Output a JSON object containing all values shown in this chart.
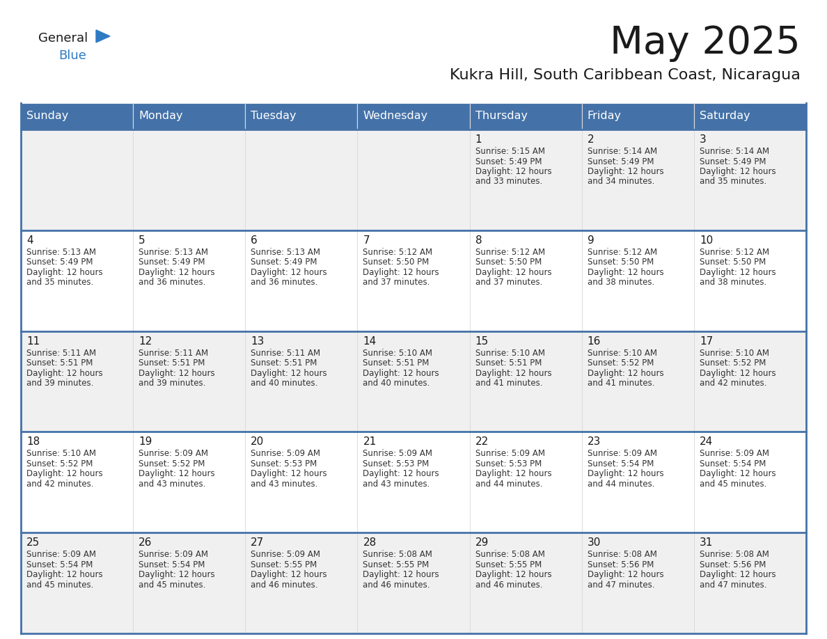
{
  "title": "May 2025",
  "subtitle": "Kukra Hill, South Caribbean Coast, Nicaragua",
  "days_of_week": [
    "Sunday",
    "Monday",
    "Tuesday",
    "Wednesday",
    "Thursday",
    "Friday",
    "Saturday"
  ],
  "header_bg": "#4472a8",
  "header_text": "#ffffff",
  "row0_bg": "#f0f0f0",
  "row1_bg": "#ffffff",
  "border_color": "#4472a8",
  "day_num_color": "#1a1a1a",
  "text_color": "#333333",
  "logo_general_color": "#1a1a1a",
  "logo_blue_color": "#2e7bc4",
  "calendar_data": [
    [
      null,
      null,
      null,
      null,
      {
        "day": 1,
        "sunrise": "5:15 AM",
        "sunset": "5:49 PM",
        "daylight": "12 hours and 33 minutes."
      },
      {
        "day": 2,
        "sunrise": "5:14 AM",
        "sunset": "5:49 PM",
        "daylight": "12 hours and 34 minutes."
      },
      {
        "day": 3,
        "sunrise": "5:14 AM",
        "sunset": "5:49 PM",
        "daylight": "12 hours and 35 minutes."
      }
    ],
    [
      {
        "day": 4,
        "sunrise": "5:13 AM",
        "sunset": "5:49 PM",
        "daylight": "12 hours and 35 minutes."
      },
      {
        "day": 5,
        "sunrise": "5:13 AM",
        "sunset": "5:49 PM",
        "daylight": "12 hours and 36 minutes."
      },
      {
        "day": 6,
        "sunrise": "5:13 AM",
        "sunset": "5:49 PM",
        "daylight": "12 hours and 36 minutes."
      },
      {
        "day": 7,
        "sunrise": "5:12 AM",
        "sunset": "5:50 PM",
        "daylight": "12 hours and 37 minutes."
      },
      {
        "day": 8,
        "sunrise": "5:12 AM",
        "sunset": "5:50 PM",
        "daylight": "12 hours and 37 minutes."
      },
      {
        "day": 9,
        "sunrise": "5:12 AM",
        "sunset": "5:50 PM",
        "daylight": "12 hours and 38 minutes."
      },
      {
        "day": 10,
        "sunrise": "5:12 AM",
        "sunset": "5:50 PM",
        "daylight": "12 hours and 38 minutes."
      }
    ],
    [
      {
        "day": 11,
        "sunrise": "5:11 AM",
        "sunset": "5:51 PM",
        "daylight": "12 hours and 39 minutes."
      },
      {
        "day": 12,
        "sunrise": "5:11 AM",
        "sunset": "5:51 PM",
        "daylight": "12 hours and 39 minutes."
      },
      {
        "day": 13,
        "sunrise": "5:11 AM",
        "sunset": "5:51 PM",
        "daylight": "12 hours and 40 minutes."
      },
      {
        "day": 14,
        "sunrise": "5:10 AM",
        "sunset": "5:51 PM",
        "daylight": "12 hours and 40 minutes."
      },
      {
        "day": 15,
        "sunrise": "5:10 AM",
        "sunset": "5:51 PM",
        "daylight": "12 hours and 41 minutes."
      },
      {
        "day": 16,
        "sunrise": "5:10 AM",
        "sunset": "5:52 PM",
        "daylight": "12 hours and 41 minutes."
      },
      {
        "day": 17,
        "sunrise": "5:10 AM",
        "sunset": "5:52 PM",
        "daylight": "12 hours and 42 minutes."
      }
    ],
    [
      {
        "day": 18,
        "sunrise": "5:10 AM",
        "sunset": "5:52 PM",
        "daylight": "12 hours and 42 minutes."
      },
      {
        "day": 19,
        "sunrise": "5:09 AM",
        "sunset": "5:52 PM",
        "daylight": "12 hours and 43 minutes."
      },
      {
        "day": 20,
        "sunrise": "5:09 AM",
        "sunset": "5:53 PM",
        "daylight": "12 hours and 43 minutes."
      },
      {
        "day": 21,
        "sunrise": "5:09 AM",
        "sunset": "5:53 PM",
        "daylight": "12 hours and 43 minutes."
      },
      {
        "day": 22,
        "sunrise": "5:09 AM",
        "sunset": "5:53 PM",
        "daylight": "12 hours and 44 minutes."
      },
      {
        "day": 23,
        "sunrise": "5:09 AM",
        "sunset": "5:54 PM",
        "daylight": "12 hours and 44 minutes."
      },
      {
        "day": 24,
        "sunrise": "5:09 AM",
        "sunset": "5:54 PM",
        "daylight": "12 hours and 45 minutes."
      }
    ],
    [
      {
        "day": 25,
        "sunrise": "5:09 AM",
        "sunset": "5:54 PM",
        "daylight": "12 hours and 45 minutes."
      },
      {
        "day": 26,
        "sunrise": "5:09 AM",
        "sunset": "5:54 PM",
        "daylight": "12 hours and 45 minutes."
      },
      {
        "day": 27,
        "sunrise": "5:09 AM",
        "sunset": "5:55 PM",
        "daylight": "12 hours and 46 minutes."
      },
      {
        "day": 28,
        "sunrise": "5:08 AM",
        "sunset": "5:55 PM",
        "daylight": "12 hours and 46 minutes."
      },
      {
        "day": 29,
        "sunrise": "5:08 AM",
        "sunset": "5:55 PM",
        "daylight": "12 hours and 46 minutes."
      },
      {
        "day": 30,
        "sunrise": "5:08 AM",
        "sunset": "5:56 PM",
        "daylight": "12 hours and 47 minutes."
      },
      {
        "day": 31,
        "sunrise": "5:08 AM",
        "sunset": "5:56 PM",
        "daylight": "12 hours and 47 minutes."
      }
    ]
  ]
}
